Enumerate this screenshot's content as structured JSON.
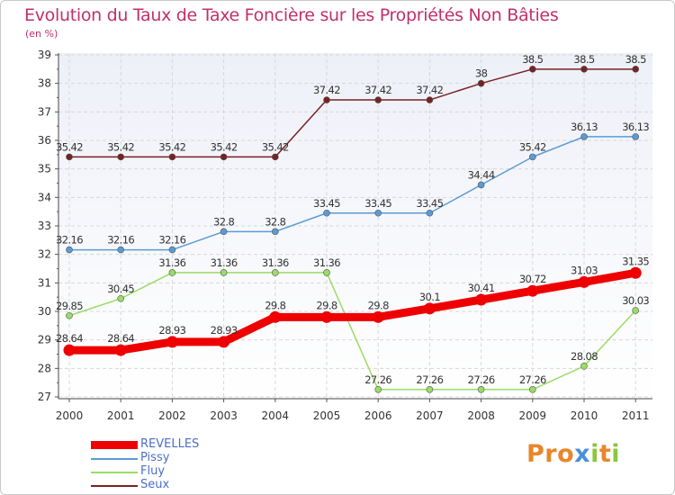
{
  "title": "Evolution du Taux de Taxe Foncière sur les Propriétés Non Bâties",
  "subtitle": "(en %)",
  "logo_text": "Proxiti",
  "chart_data": {
    "type": "line",
    "title": "Evolution du Taux de Taxe Foncière sur les Propriétés Non Bâties",
    "ylabel": "(en %)",
    "xlabel": "",
    "categories": [
      "2000",
      "2001",
      "2002",
      "2003",
      "2004",
      "2005",
      "2006",
      "2007",
      "2008",
      "2009",
      "2010",
      "2011"
    ],
    "yticks": [
      27,
      28,
      29,
      30,
      31,
      32,
      33,
      34,
      35,
      36,
      37,
      38,
      39
    ],
    "ylim": [
      27,
      39
    ],
    "grid": true,
    "legend_position": "bottom-left",
    "series": [
      {
        "name": "REVELLES",
        "color": "#ee0000",
        "values": [
          28.64,
          28.64,
          28.93,
          28.93,
          29.8,
          29.8,
          29.8,
          30.1,
          30.41,
          30.72,
          31.03,
          31.35
        ],
        "labels": [
          "28.64",
          "28.64",
          "28.93",
          "28.93",
          "29.8",
          "29.8",
          "29.8",
          "30.1",
          "30.41",
          "30.72",
          "31.03",
          "31.35"
        ]
      },
      {
        "name": "Pissy",
        "color": "#5b9bd5",
        "values": [
          32.16,
          32.16,
          32.16,
          32.8,
          32.8,
          33.45,
          33.45,
          33.45,
          34.44,
          35.42,
          36.13,
          36.13
        ],
        "labels": [
          "32.16",
          "32.16",
          "32.16",
          "32.8",
          "32.8",
          "33.45",
          "33.45",
          "33.45",
          "34.44",
          "35.42",
          "36.13",
          "36.13"
        ]
      },
      {
        "name": "Fluy",
        "color": "#99dd66",
        "values": [
          29.85,
          30.45,
          31.36,
          31.36,
          31.36,
          31.36,
          27.26,
          27.26,
          27.26,
          27.26,
          28.08,
          30.03
        ],
        "labels": [
          "29.85",
          "30.45",
          "31.36",
          "31.36",
          "31.36",
          "31.36",
          "27.26",
          "27.26",
          "27.26",
          "27.26",
          "28.08",
          "30.03"
        ]
      },
      {
        "name": "Seux",
        "color": "#772222",
        "values": [
          35.42,
          35.42,
          35.42,
          35.42,
          35.42,
          37.42,
          37.42,
          37.42,
          38,
          38.5,
          38.5,
          38.5
        ],
        "labels": [
          "35.42",
          "35.42",
          "35.42",
          "35.42",
          "35.42",
          "37.42",
          "37.42",
          "37.42",
          "38",
          "38.5",
          "38.5",
          "38.5"
        ]
      }
    ]
  }
}
